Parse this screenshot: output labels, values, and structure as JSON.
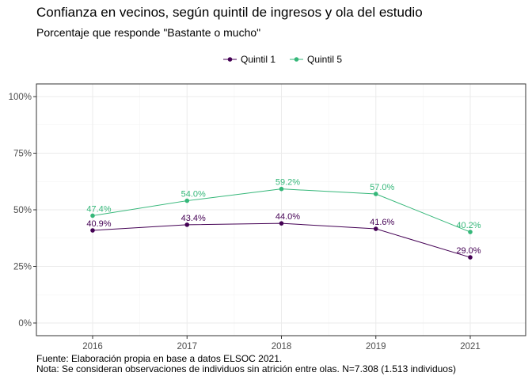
{
  "chart_data": {
    "type": "line",
    "title": "Confianza en vecinos, según quintil de ingresos y ola del estudio",
    "subtitle": "Porcentaje que responde \"Bastante o mucho\"",
    "xlabel": "",
    "ylabel": "",
    "categories": [
      "2016",
      "2017",
      "2018",
      "2019",
      "2021"
    ],
    "ylim": [
      0,
      100
    ],
    "yticks": [
      0,
      25,
      50,
      75,
      100
    ],
    "ytick_labels": [
      "0%",
      "25%",
      "50%",
      "75%",
      "100%"
    ],
    "grid": true,
    "legend": "top-center",
    "series": [
      {
        "name": "Quintil 1",
        "color": "#440154",
        "values": [
          40.9,
          43.4,
          44.0,
          41.6,
          29.0
        ],
        "labels": [
          "40.9%",
          "43.4%",
          "44.0%",
          "41.6%",
          "29.0%"
        ]
      },
      {
        "name": "Quintil 5",
        "color": "#35B779",
        "values": [
          47.4,
          54.0,
          59.2,
          57.0,
          40.2
        ],
        "labels": [
          "47.4%",
          "54.0%",
          "59.2%",
          "57.0%",
          "40.2%"
        ]
      }
    ],
    "caption": [
      "Fuente: Elaboración propia en base a datos ELSOC 2021.",
      "Nota: Se consideran observaciones de individuos sin atrición entre olas. N=7.308 (1.513 individuos)"
    ]
  }
}
